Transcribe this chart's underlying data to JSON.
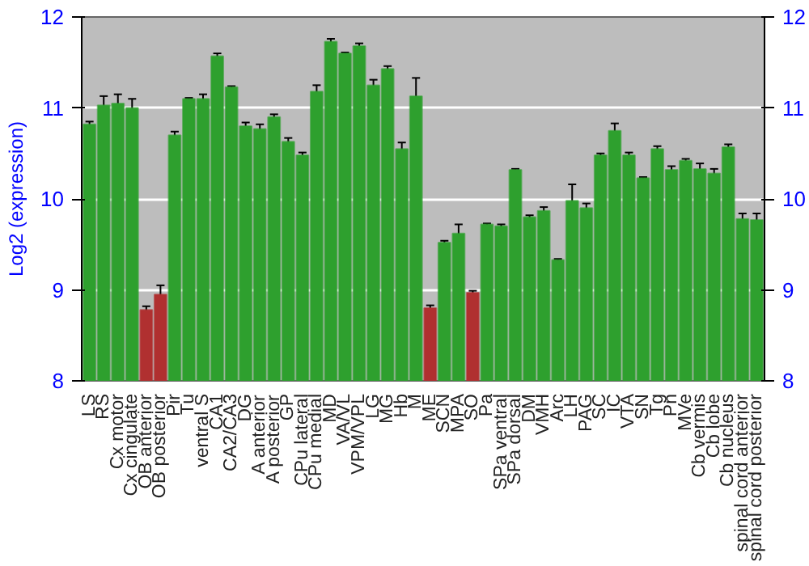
{
  "chart_data": {
    "type": "bar",
    "ylabel": "Log2 (expression)",
    "categories": [
      "LS",
      "RS",
      "Cx motor",
      "Cx cingulate",
      "OB anterior",
      "OB posterior",
      "Pir",
      "Tu",
      "ventral S",
      "CA1",
      "CA2/CA3",
      "DG",
      "A anterior",
      "A posterior",
      "GP",
      "CPu lateral",
      "CPu medial",
      "MD",
      "VA/VL",
      "VPM/VPL",
      "LG",
      "MG",
      "Hb",
      "M",
      "ME",
      "SCN",
      "MPA",
      "SO",
      "Pa",
      "SPa ventral",
      "SPa dorsal",
      "DM",
      "VMH",
      "Arc",
      "LH",
      "PAG",
      "SC",
      "IC",
      "VTA",
      "SN",
      "Tg",
      "Pn",
      "MVe",
      "Cb vermis",
      "Cb lobe",
      "Cb nucleus",
      "spinal cord anterior",
      "spinal cord posterior"
    ],
    "values": [
      10.82,
      11.03,
      11.05,
      11.0,
      8.78,
      8.95,
      10.7,
      11.1,
      11.1,
      11.57,
      11.23,
      10.8,
      10.77,
      10.9,
      10.63,
      10.48,
      11.18,
      11.73,
      11.6,
      11.68,
      11.25,
      11.43,
      10.55,
      11.13,
      8.8,
      9.52,
      9.62,
      8.97,
      9.72,
      9.7,
      10.32,
      9.8,
      9.87,
      9.33,
      9.98,
      9.9,
      10.48,
      10.75,
      10.48,
      10.23,
      10.55,
      10.32,
      10.42,
      10.33,
      10.28,
      10.57,
      9.78,
      9.77
    ],
    "errors": [
      0.03,
      0.1,
      0.1,
      0.1,
      0.04,
      0.1,
      0.04,
      0.01,
      0.05,
      0.03,
      0.01,
      0.04,
      0.05,
      0.03,
      0.04,
      0.03,
      0.07,
      0.03,
      0.01,
      0.03,
      0.06,
      0.03,
      0.07,
      0.2,
      0.03,
      0.02,
      0.1,
      0.02,
      0.01,
      0.02,
      0.01,
      0.02,
      0.04,
      0.01,
      0.18,
      0.05,
      0.02,
      0.08,
      0.03,
      0.01,
      0.03,
      0.04,
      0.02,
      0.06,
      0.05,
      0.03,
      0.06,
      0.07
    ],
    "colors": [
      "#2ea02e",
      "#2ea02e",
      "#2ea02e",
      "#2ea02e",
      "#b03030",
      "#b03030",
      "#2ea02e",
      "#2ea02e",
      "#2ea02e",
      "#2ea02e",
      "#2ea02e",
      "#2ea02e",
      "#2ea02e",
      "#2ea02e",
      "#2ea02e",
      "#2ea02e",
      "#2ea02e",
      "#2ea02e",
      "#2ea02e",
      "#2ea02e",
      "#2ea02e",
      "#2ea02e",
      "#2ea02e",
      "#2ea02e",
      "#b03030",
      "#2ea02e",
      "#2ea02e",
      "#b03030",
      "#2ea02e",
      "#2ea02e",
      "#2ea02e",
      "#2ea02e",
      "#2ea02e",
      "#2ea02e",
      "#2ea02e",
      "#2ea02e",
      "#2ea02e",
      "#2ea02e",
      "#2ea02e",
      "#2ea02e",
      "#2ea02e",
      "#2ea02e",
      "#2ea02e",
      "#2ea02e",
      "#2ea02e",
      "#2ea02e",
      "#2ea02e",
      "#2ea02e"
    ],
    "ylim": [
      8,
      12
    ],
    "yticks": [
      8,
      9,
      10,
      11,
      12
    ],
    "y2lim": [
      8,
      12
    ],
    "y2ticks": [
      8,
      9,
      10,
      11,
      12
    ],
    "grid": "y"
  }
}
